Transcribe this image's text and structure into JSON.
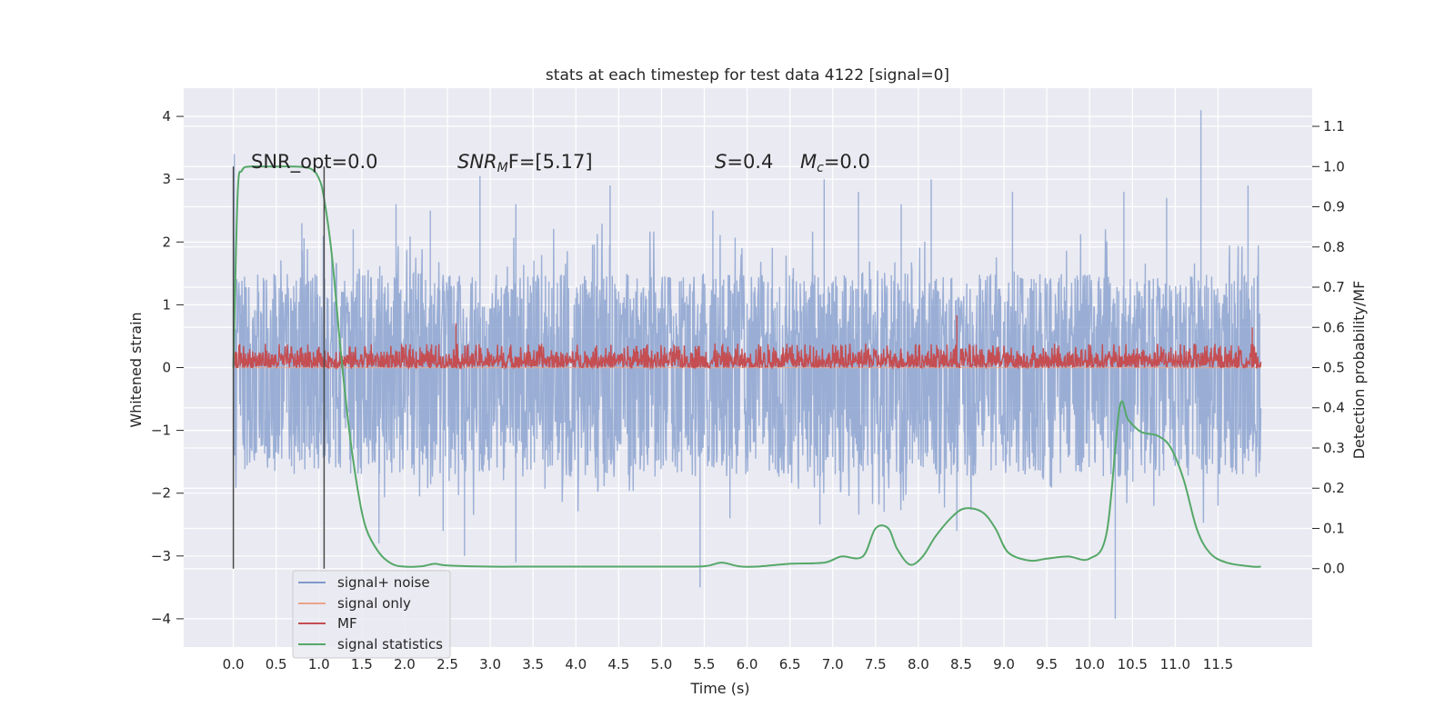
{
  "chart_data": {
    "type": "line",
    "title": "stats at each timestep for test data 4122 [signal=0]",
    "xlabel": "Time (s)",
    "ylabel": "Whitened strain",
    "y2label": "Detection probability/MF",
    "xlim": [
      -0.58,
      12.6
    ],
    "ylim": [
      -4.45,
      4.45
    ],
    "y2lim": [
      -0.195,
      1.195
    ],
    "xticks": [
      "0.0",
      "0.5",
      "1.0",
      "1.5",
      "2.0",
      "2.5",
      "3.0",
      "3.5",
      "4.0",
      "4.5",
      "5.0",
      "5.5",
      "6.0",
      "6.5",
      "7.0",
      "7.5",
      "8.0",
      "8.5",
      "9.0",
      "9.5",
      "10.0",
      "10.5",
      "11.0",
      "11.5"
    ],
    "yticks": [
      "4",
      "3",
      "2",
      "1",
      "0",
      "−1",
      "−2",
      "−3",
      "−4"
    ],
    "y2ticks": [
      "1.1",
      "1.0",
      "0.9",
      "0.8",
      "0.7",
      "0.6",
      "0.5",
      "0.4",
      "0.3",
      "0.2",
      "0.1",
      "0.0"
    ],
    "grid": true,
    "legend_position": "lower-left",
    "annotations": {
      "snr_opt": "SNR_opt=0.0",
      "snr_mf_var": "SNR",
      "snr_mf_sub": "M",
      "snr_mf_rest": "F=[5.17]",
      "s_var": "S",
      "s_val": "=0.4",
      "mc_var": "M",
      "mc_sub": "c",
      "mc_val": "=0.0"
    },
    "vlines": [
      0.0,
      1.06
    ],
    "series": [
      {
        "name": "signal+ noise",
        "color": "#7f9acb",
        "axis": "left",
        "x_range": [
          0.0,
          12.0
        ],
        "envelope_upper": 1.25,
        "envelope_lower": -1.45,
        "spikes": [
          [
            0.01,
            3.4
          ],
          [
            0.8,
            2.3
          ],
          [
            1.05,
            2.1
          ],
          [
            1.4,
            2.2
          ],
          [
            1.9,
            2.6
          ],
          [
            2.3,
            2.5
          ],
          [
            2.88,
            3.05
          ],
          [
            3.3,
            2.6
          ],
          [
            4.4,
            2.9
          ],
          [
            5.6,
            2.5
          ],
          [
            6.9,
            3.0
          ],
          [
            7.3,
            2.8
          ],
          [
            7.8,
            2.6
          ],
          [
            8.15,
            3.0
          ],
          [
            9.1,
            2.8
          ],
          [
            10.4,
            2.8
          ],
          [
            10.9,
            2.7
          ],
          [
            11.3,
            4.1
          ],
          [
            11.85,
            2.9
          ],
          [
            2.45,
            -2.6
          ],
          [
            2.7,
            -3.0
          ],
          [
            3.3,
            -3.1
          ],
          [
            5.45,
            -3.5
          ],
          [
            5.8,
            -2.4
          ],
          [
            6.85,
            -2.5
          ],
          [
            7.6,
            -2.3
          ],
          [
            8.45,
            -2.6
          ],
          [
            10.3,
            -4.0
          ],
          [
            11.5,
            -2.2
          ],
          [
            1.7,
            -2.8
          ]
        ]
      },
      {
        "name": "signal only",
        "color": "#e8a58a",
        "axis": "left",
        "x": [
          0.0,
          12.0
        ],
        "y": [
          0.0,
          0.0
        ]
      },
      {
        "name": "MF",
        "color": "#c44e52",
        "axis": "right",
        "x_range": [
          0.0,
          12.0
        ],
        "baseline": 0.5,
        "typical_peak": 0.55,
        "spikes": [
          [
            2.6,
            0.61
          ],
          [
            8.45,
            0.63
          ],
          [
            11.9,
            0.6
          ]
        ]
      },
      {
        "name": "signal statistics",
        "color": "#55a868",
        "axis": "right",
        "x": [
          0.0,
          0.05,
          0.1,
          0.2,
          0.4,
          0.7,
          0.9,
          1.0,
          1.06,
          1.15,
          1.25,
          1.35,
          1.45,
          1.55,
          1.7,
          1.85,
          2.0,
          2.2,
          2.35,
          2.5,
          3.0,
          3.5,
          4.0,
          4.5,
          5.0,
          5.5,
          5.7,
          5.9,
          6.1,
          6.5,
          6.9,
          7.1,
          7.35,
          7.5,
          7.65,
          7.75,
          7.9,
          8.05,
          8.2,
          8.4,
          8.55,
          8.75,
          8.9,
          9.05,
          9.3,
          9.5,
          9.75,
          10.0,
          10.2,
          10.35,
          10.45,
          10.6,
          10.8,
          10.95,
          11.1,
          11.25,
          11.4,
          11.6,
          11.9,
          12.0
        ],
        "y": [
          0.5,
          0.93,
          0.99,
          1.0,
          1.0,
          1.0,
          0.995,
          0.97,
          0.92,
          0.78,
          0.55,
          0.35,
          0.2,
          0.1,
          0.04,
          0.012,
          0.005,
          0.006,
          0.012,
          0.008,
          0.005,
          0.005,
          0.005,
          0.005,
          0.005,
          0.006,
          0.015,
          0.006,
          0.005,
          0.012,
          0.015,
          0.03,
          0.03,
          0.1,
          0.1,
          0.05,
          0.01,
          0.03,
          0.08,
          0.13,
          0.15,
          0.14,
          0.1,
          0.04,
          0.02,
          0.025,
          0.03,
          0.025,
          0.09,
          0.4,
          0.37,
          0.34,
          0.33,
          0.3,
          0.22,
          0.1,
          0.04,
          0.015,
          0.005,
          0.005
        ]
      }
    ]
  }
}
